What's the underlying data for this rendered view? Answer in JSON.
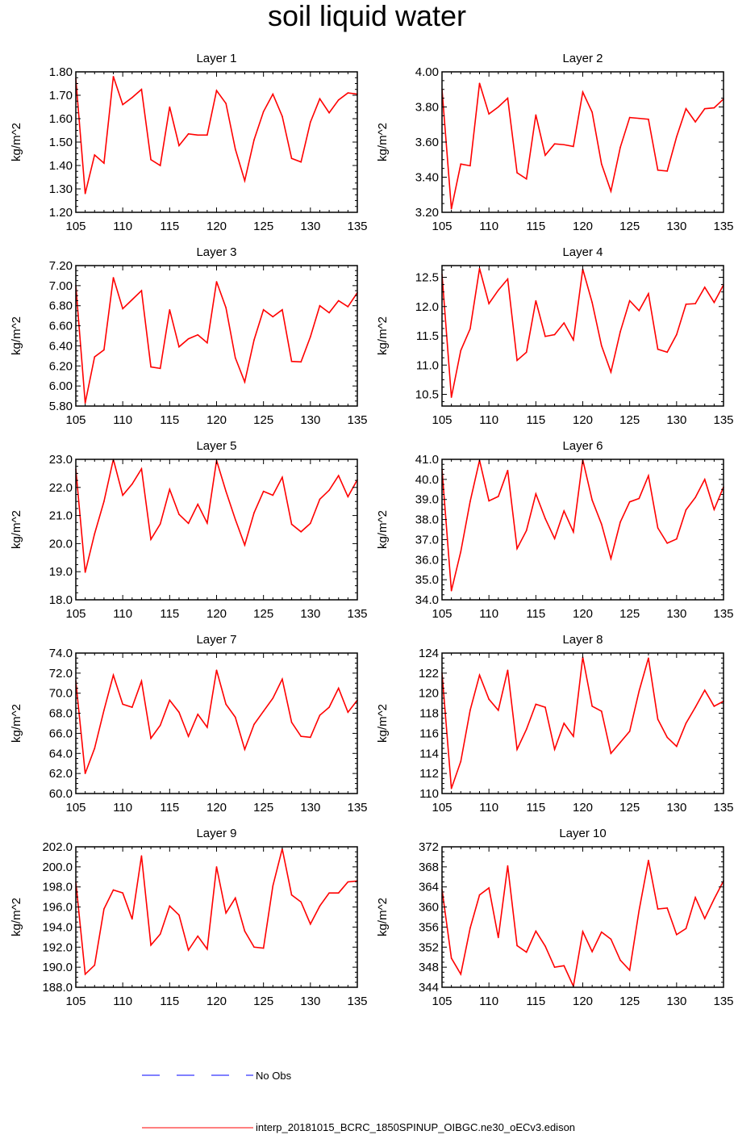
{
  "title": "soil liquid water",
  "colors": {
    "model": "#ff0000",
    "obs": "#0000ff",
    "axis": "#000000"
  },
  "legend": [
    {
      "label": "No Obs",
      "style": "dashed",
      "color": "#0000ff"
    },
    {
      "label": "interp_20181015_BCRC_1850SPINUP_OIBGC.ne30_oECv3.edison",
      "style": "solid",
      "color": "#ff0000"
    }
  ],
  "chart_data": [
    {
      "type": "line",
      "title": "Layer 1",
      "xlabel": "",
      "ylabel": "kg/m^2",
      "xlim": [
        105,
        135
      ],
      "ylim": [
        1.2,
        1.8
      ],
      "xticks": [
        105,
        110,
        115,
        120,
        125,
        130,
        135
      ],
      "yticks": [
        "1.20",
        "1.30",
        "1.40",
        "1.50",
        "1.60",
        "1.70",
        "1.80"
      ],
      "x": [
        105,
        106,
        107,
        108,
        109,
        110,
        111,
        112,
        113,
        114,
        115,
        116,
        117,
        118,
        119,
        120,
        121,
        122,
        123,
        124,
        125,
        126,
        127,
        128,
        129,
        130,
        131,
        132,
        133,
        134,
        135
      ],
      "series": [
        {
          "values": [
            1.77,
            1.28,
            1.445,
            1.41,
            1.78,
            1.66,
            1.69,
            1.725,
            1.425,
            1.4,
            1.65,
            1.485,
            1.535,
            1.53,
            1.53,
            1.72,
            1.665,
            1.47,
            1.335,
            1.51,
            1.63,
            1.705,
            1.61,
            1.43,
            1.415,
            1.585,
            1.685,
            1.625,
            1.68,
            1.71,
            1.705
          ]
        }
      ]
    },
    {
      "type": "line",
      "title": "Layer 2",
      "xlabel": "",
      "ylabel": "kg/m^2",
      "xlim": [
        105,
        135
      ],
      "ylim": [
        3.2,
        4.0
      ],
      "xticks": [
        105,
        110,
        115,
        120,
        125,
        130,
        135
      ],
      "yticks": [
        "3.20",
        "3.40",
        "3.60",
        "3.80",
        "4.00"
      ],
      "x": [
        105,
        106,
        107,
        108,
        109,
        110,
        111,
        112,
        113,
        114,
        115,
        116,
        117,
        118,
        119,
        120,
        121,
        122,
        123,
        124,
        125,
        126,
        127,
        128,
        129,
        130,
        131,
        132,
        133,
        134,
        135
      ],
      "series": [
        {
          "values": [
            3.9,
            3.22,
            3.475,
            3.465,
            3.935,
            3.76,
            3.8,
            3.85,
            3.425,
            3.39,
            3.755,
            3.525,
            3.59,
            3.585,
            3.575,
            3.885,
            3.77,
            3.475,
            3.32,
            3.57,
            3.74,
            3.735,
            3.73,
            3.44,
            3.435,
            3.63,
            3.79,
            3.715,
            3.79,
            3.795,
            3.845
          ]
        }
      ]
    },
    {
      "type": "line",
      "title": "Layer 3",
      "xlabel": "",
      "ylabel": "kg/m^2",
      "xlim": [
        105,
        135
      ],
      "ylim": [
        5.8,
        7.2
      ],
      "xticks": [
        105,
        110,
        115,
        120,
        125,
        130,
        135
      ],
      "yticks": [
        "5.80",
        "6.00",
        "6.20",
        "6.40",
        "6.60",
        "6.80",
        "7.00",
        "7.20"
      ],
      "x": [
        105,
        106,
        107,
        108,
        109,
        110,
        111,
        112,
        113,
        114,
        115,
        116,
        117,
        118,
        119,
        120,
        121,
        122,
        123,
        124,
        125,
        126,
        127,
        128,
        129,
        130,
        131,
        132,
        133,
        134,
        135
      ],
      "series": [
        {
          "values": [
            7.0,
            5.83,
            6.29,
            6.36,
            7.08,
            6.77,
            6.86,
            6.95,
            6.19,
            6.175,
            6.76,
            6.39,
            6.47,
            6.51,
            6.43,
            7.04,
            6.78,
            6.28,
            6.04,
            6.46,
            6.76,
            6.69,
            6.76,
            6.245,
            6.24,
            6.49,
            6.8,
            6.73,
            6.85,
            6.79,
            6.93
          ]
        }
      ]
    },
    {
      "type": "line",
      "title": "Layer 4",
      "xlabel": "",
      "ylabel": "kg/m^2",
      "xlim": [
        105,
        135
      ],
      "ylim": [
        10.3,
        12.7
      ],
      "xticks": [
        105,
        110,
        115,
        120,
        125,
        130,
        135
      ],
      "yticks": [
        "10.5",
        "11.0",
        "11.5",
        "12.0",
        "12.5"
      ],
      "x": [
        105,
        106,
        107,
        108,
        109,
        110,
        111,
        112,
        113,
        114,
        115,
        116,
        117,
        118,
        119,
        120,
        121,
        122,
        123,
        124,
        125,
        126,
        127,
        128,
        129,
        130,
        131,
        132,
        133,
        134,
        135
      ],
      "series": [
        {
          "values": [
            12.55,
            10.45,
            11.25,
            11.62,
            12.65,
            12.05,
            12.28,
            12.47,
            11.08,
            11.22,
            12.1,
            11.49,
            11.52,
            11.72,
            11.43,
            12.64,
            12.07,
            11.33,
            10.88,
            11.57,
            12.1,
            11.93,
            12.22,
            11.27,
            11.22,
            11.52,
            12.04,
            12.05,
            12.33,
            12.07,
            12.37
          ]
        }
      ]
    },
    {
      "type": "line",
      "title": "Layer 5",
      "xlabel": "",
      "ylabel": "kg/m^2",
      "xlim": [
        105,
        135
      ],
      "ylim": [
        18.0,
        23.0
      ],
      "xticks": [
        105,
        110,
        115,
        120,
        125,
        130,
        135
      ],
      "yticks": [
        "18.0",
        "19.0",
        "20.0",
        "21.0",
        "22.0",
        "23.0"
      ],
      "x": [
        105,
        106,
        107,
        108,
        109,
        110,
        111,
        112,
        113,
        114,
        115,
        116,
        117,
        118,
        119,
        120,
        121,
        122,
        123,
        124,
        125,
        126,
        127,
        128,
        129,
        130,
        131,
        132,
        133,
        134,
        135
      ],
      "series": [
        {
          "values": [
            22.65,
            18.98,
            20.35,
            21.5,
            23.0,
            21.72,
            22.12,
            22.66,
            20.15,
            20.7,
            21.93,
            21.04,
            20.72,
            21.4,
            20.73,
            22.96,
            21.86,
            20.86,
            19.95,
            21.1,
            21.86,
            21.72,
            22.36,
            20.69,
            20.42,
            20.72,
            21.58,
            21.9,
            22.42,
            21.67,
            22.27
          ]
        }
      ]
    },
    {
      "type": "line",
      "title": "Layer 6",
      "xlabel": "",
      "ylabel": "kg/m^2",
      "xlim": [
        105,
        135
      ],
      "ylim": [
        34.0,
        41.0
      ],
      "xticks": [
        105,
        110,
        115,
        120,
        125,
        130,
        135
      ],
      "yticks": [
        "34.0",
        "35.0",
        "36.0",
        "37.0",
        "38.0",
        "39.0",
        "40.0",
        "41.0"
      ],
      "x": [
        105,
        106,
        107,
        108,
        109,
        110,
        111,
        112,
        113,
        114,
        115,
        116,
        117,
        118,
        119,
        120,
        121,
        122,
        123,
        124,
        125,
        126,
        127,
        128,
        129,
        130,
        131,
        132,
        133,
        134,
        135
      ],
      "series": [
        {
          "values": [
            40.5,
            34.45,
            36.4,
            38.9,
            40.95,
            38.93,
            39.15,
            40.45,
            36.55,
            37.45,
            39.28,
            38.05,
            37.05,
            38.43,
            37.38,
            40.98,
            38.97,
            37.77,
            36.05,
            37.87,
            38.88,
            39.05,
            40.18,
            37.58,
            36.82,
            37.03,
            38.48,
            39.1,
            40.0,
            38.5,
            39.62
          ]
        }
      ]
    },
    {
      "type": "line",
      "title": "Layer 7",
      "xlabel": "",
      "ylabel": "kg/m^2",
      "xlim": [
        105,
        135
      ],
      "ylim": [
        60.0,
        74.0
      ],
      "xticks": [
        105,
        110,
        115,
        120,
        125,
        130,
        135
      ],
      "yticks": [
        "60.0",
        "62.0",
        "64.0",
        "66.0",
        "68.0",
        "70.0",
        "72.0",
        "74.0"
      ],
      "x": [
        105,
        106,
        107,
        108,
        109,
        110,
        111,
        112,
        113,
        114,
        115,
        116,
        117,
        118,
        119,
        120,
        121,
        122,
        123,
        124,
        125,
        126,
        127,
        128,
        129,
        130,
        131,
        132,
        133,
        134,
        135
      ],
      "series": [
        {
          "values": [
            71.2,
            62.0,
            64.5,
            68.3,
            71.8,
            68.9,
            68.6,
            71.2,
            65.5,
            66.8,
            69.3,
            68.1,
            65.7,
            67.9,
            66.6,
            72.3,
            68.9,
            67.6,
            64.4,
            66.9,
            68.2,
            69.5,
            71.4,
            67.1,
            65.7,
            65.6,
            67.8,
            68.6,
            70.5,
            68.1,
            69.3
          ]
        }
      ]
    },
    {
      "type": "line",
      "title": "Layer 8",
      "xlabel": "",
      "ylabel": "kg/m^2",
      "xlim": [
        105,
        135
      ],
      "ylim": [
        110,
        124
      ],
      "xticks": [
        105,
        110,
        115,
        120,
        125,
        130,
        135
      ],
      "yticks": [
        "110",
        "112",
        "114",
        "116",
        "118",
        "120",
        "122",
        "124"
      ],
      "x": [
        105,
        106,
        107,
        108,
        109,
        110,
        111,
        112,
        113,
        114,
        115,
        116,
        117,
        118,
        119,
        120,
        121,
        122,
        123,
        124,
        125,
        126,
        127,
        128,
        129,
        130,
        131,
        132,
        133,
        134,
        135
      ],
      "series": [
        {
          "values": [
            122.0,
            110.5,
            113.2,
            118.3,
            121.8,
            119.4,
            118.3,
            122.3,
            114.4,
            116.4,
            118.9,
            118.6,
            114.4,
            117.0,
            115.7,
            123.6,
            118.7,
            118.2,
            114.0,
            115.1,
            116.2,
            120.2,
            123.5,
            117.4,
            115.6,
            114.7,
            117.0,
            118.6,
            120.3,
            118.7,
            119.2
          ]
        }
      ]
    },
    {
      "type": "line",
      "title": "Layer 9",
      "xlabel": "",
      "ylabel": "kg/m^2",
      "xlim": [
        105,
        135
      ],
      "ylim": [
        188.0,
        202.0
      ],
      "xticks": [
        105,
        110,
        115,
        120,
        125,
        130,
        135
      ],
      "yticks": [
        "188.0",
        "190.0",
        "192.0",
        "194.0",
        "196.0",
        "198.0",
        "200.0",
        "202.0"
      ],
      "x": [
        105,
        106,
        107,
        108,
        109,
        110,
        111,
        112,
        113,
        114,
        115,
        116,
        117,
        118,
        119,
        120,
        121,
        122,
        123,
        124,
        125,
        126,
        127,
        128,
        129,
        130,
        131,
        132,
        133,
        134,
        135
      ],
      "series": [
        {
          "values": [
            198.5,
            189.3,
            190.2,
            195.8,
            197.7,
            197.4,
            194.8,
            201.1,
            192.2,
            193.3,
            196.1,
            195.2,
            191.7,
            193.1,
            191.8,
            200.0,
            195.4,
            196.9,
            193.6,
            192.0,
            191.9,
            198.1,
            201.8,
            197.2,
            196.5,
            194.3,
            196.1,
            197.4,
            197.4,
            198.5,
            198.6
          ]
        }
      ]
    },
    {
      "type": "line",
      "title": "Layer 10",
      "xlabel": "",
      "ylabel": "kg/m^2",
      "xlim": [
        105,
        135
      ],
      "ylim": [
        344,
        372
      ],
      "xticks": [
        105,
        110,
        115,
        120,
        125,
        130,
        135
      ],
      "yticks": [
        "344",
        "348",
        "352",
        "356",
        "360",
        "364",
        "368",
        "372"
      ],
      "x": [
        105,
        106,
        107,
        108,
        109,
        110,
        111,
        112,
        113,
        114,
        115,
        116,
        117,
        118,
        119,
        120,
        121,
        122,
        123,
        124,
        125,
        126,
        127,
        128,
        129,
        130,
        131,
        132,
        133,
        134,
        135
      ],
      "series": [
        {
          "values": [
            363.5,
            349.8,
            346.6,
            355.8,
            362.4,
            363.8,
            353.9,
            368.2,
            352.3,
            351.0,
            355.2,
            352.2,
            348.0,
            348.3,
            344.2,
            355.1,
            351.1,
            355.0,
            353.6,
            349.4,
            347.4,
            359.3,
            369.3,
            359.6,
            359.8,
            354.5,
            355.7,
            361.9,
            357.7,
            361.6,
            365.2
          ]
        }
      ]
    }
  ]
}
